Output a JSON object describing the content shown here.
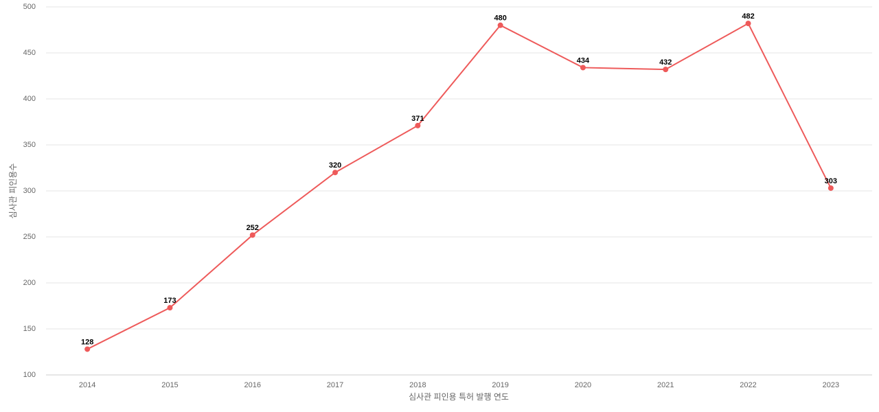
{
  "chart_data": {
    "type": "line",
    "x_label": "심사관 피인용 특허 발행 연도",
    "y_label": "심사관 피인용수",
    "categories": [
      "2014",
      "2015",
      "2016",
      "2017",
      "2018",
      "2019",
      "2020",
      "2021",
      "2022",
      "2023"
    ],
    "values": [
      128,
      173,
      252,
      320,
      371,
      480,
      434,
      432,
      482,
      303
    ],
    "color": "#ee5a5a",
    "ylim": [
      100,
      500
    ],
    "yticks": [
      100,
      150,
      200,
      250,
      300,
      350,
      400,
      450,
      500
    ],
    "grid": true
  }
}
